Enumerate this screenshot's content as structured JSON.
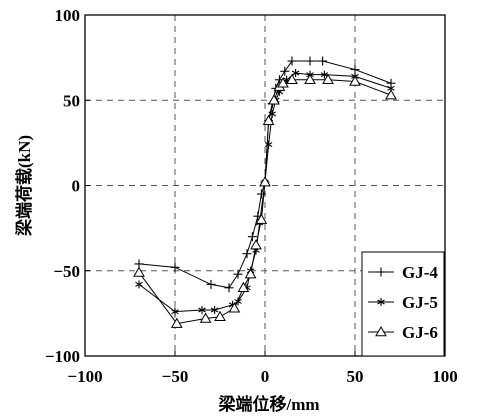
{
  "chart_data": {
    "type": "line",
    "title": "",
    "xlabel": "梁端位移/mm",
    "ylabel": "梁端荷载(kN)",
    "xlim": [
      -100,
      100
    ],
    "ylim": [
      -100,
      100
    ],
    "xticks": [
      -100,
      -50,
      0,
      50,
      100
    ],
    "yticks": [
      -100,
      -50,
      0,
      50,
      100
    ],
    "grid": "dashed",
    "legend_position": "bottom-right",
    "series": [
      {
        "name": "GJ-4",
        "marker": "plus",
        "x": [
          -70,
          -50,
          -30,
          -20,
          -15,
          -10,
          -7,
          -4,
          -2,
          0,
          2,
          4,
          6,
          8,
          11,
          15,
          25,
          32,
          50,
          70
        ],
        "y": [
          -46,
          -48,
          -58,
          -60,
          -52,
          -40,
          -30,
          -18,
          -5,
          2,
          38,
          48,
          57,
          62,
          67,
          73,
          73,
          73,
          68,
          60
        ]
      },
      {
        "name": "GJ-5",
        "marker": "asterisk",
        "x": [
          -70,
          -50,
          -35,
          -28,
          -18,
          -15,
          -10,
          -8,
          -5,
          -3,
          0,
          2,
          4,
          6,
          8,
          12,
          17,
          25,
          33,
          50,
          70
        ],
        "y": [
          -58,
          -74,
          -73,
          -73,
          -70,
          -68,
          -60,
          -50,
          -38,
          -22,
          2,
          24,
          42,
          50,
          55,
          62,
          66,
          65,
          65,
          64,
          57
        ]
      },
      {
        "name": "GJ-6",
        "marker": "triangle",
        "x": [
          -70,
          -49,
          -33,
          -25,
          -17,
          -12,
          -8,
          -5,
          -2,
          0,
          2,
          5,
          8,
          10,
          15,
          25,
          35,
          50,
          70
        ],
        "y": [
          -51,
          -81,
          -78,
          -77,
          -72,
          -60,
          -52,
          -35,
          -20,
          2,
          38,
          50,
          58,
          60,
          62,
          62,
          62,
          61,
          53
        ]
      }
    ]
  }
}
